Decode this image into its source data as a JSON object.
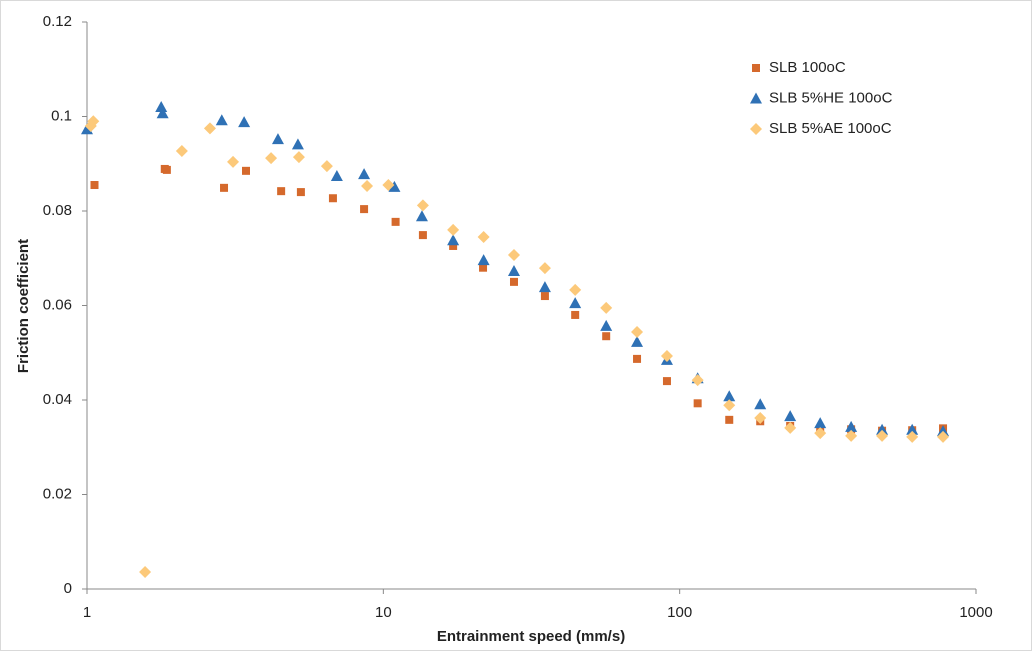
{
  "chart_data": {
    "type": "scatter",
    "x_label": "Entrainment speed (mm/s)",
    "y_label": "Friction coefficient",
    "xscale": "log",
    "xlim": [
      1,
      1000
    ],
    "xticks": [
      1,
      10,
      100,
      1000
    ],
    "ylim": [
      0,
      0.12
    ],
    "yticks": [
      0,
      0.02,
      0.04,
      0.06,
      0.08,
      0.1,
      0.12
    ],
    "grid": false,
    "legend": "upper right",
    "series": [
      {
        "name": "SLB 100oC",
        "color": "#d5692c",
        "marker": "square",
        "x": [
          1.06,
          1.83,
          1.86,
          2.9,
          3.44,
          4.52,
          5.27,
          6.76,
          8.61,
          11.0,
          13.6,
          17.2,
          21.7,
          27.6,
          35.1,
          44.4,
          56.5,
          71.8,
          90.6,
          115,
          147,
          187,
          236,
          298,
          379,
          482,
          609,
          774
        ],
        "values": [
          0.0855,
          0.0889,
          0.0887,
          0.0849,
          0.0885,
          0.0842,
          0.084,
          0.0827,
          0.0804,
          0.0777,
          0.0749,
          0.0726,
          0.068,
          0.065,
          0.062,
          0.058,
          0.0535,
          0.0487,
          0.044,
          0.0393,
          0.0358,
          0.0355,
          0.0345,
          0.0338,
          0.0338,
          0.0335,
          0.0336,
          0.034
        ]
      },
      {
        "name": "SLB 5%HE 100oC",
        "color": "#2f71b5",
        "marker": "triangle",
        "x": [
          1.0,
          1.78,
          1.8,
          2.85,
          3.39,
          4.41,
          5.15,
          6.97,
          8.61,
          10.9,
          13.5,
          17.2,
          21.8,
          27.6,
          35.1,
          44.4,
          56.5,
          71.8,
          90.6,
          115,
          147,
          187,
          236,
          298,
          379,
          482,
          609,
          774
        ],
        "values": [
          0.0973,
          0.102,
          0.1007,
          0.0992,
          0.0988,
          0.0952,
          0.0941,
          0.0874,
          0.0878,
          0.0851,
          0.0789,
          0.0738,
          0.0696,
          0.0673,
          0.0639,
          0.0605,
          0.0557,
          0.0523,
          0.0485,
          0.0446,
          0.0408,
          0.0391,
          0.0366,
          0.0351,
          0.0343,
          0.0337,
          0.0337,
          0.0334
        ]
      },
      {
        "name": "SLB 5%AE  100oC",
        "color": "#fcc97a",
        "marker": "diamond",
        "x": [
          1.57,
          1.03,
          1.05,
          2.09,
          2.6,
          3.11,
          4.18,
          5.19,
          6.45,
          8.81,
          10.4,
          13.6,
          17.2,
          21.8,
          27.6,
          35.1,
          44.4,
          56.5,
          71.8,
          90.6,
          115,
          147,
          187,
          236,
          298,
          379,
          482,
          609,
          774
        ],
        "values": [
          0.0036,
          0.098,
          0.099,
          0.0927,
          0.0975,
          0.0904,
          0.0912,
          0.0914,
          0.0895,
          0.0853,
          0.0855,
          0.0812,
          0.076,
          0.0745,
          0.0707,
          0.0679,
          0.0633,
          0.0595,
          0.0544,
          0.0493,
          0.0442,
          0.0389,
          0.0362,
          0.0341,
          0.033,
          0.0324,
          0.0324,
          0.0322,
          0.0322
        ]
      }
    ]
  }
}
